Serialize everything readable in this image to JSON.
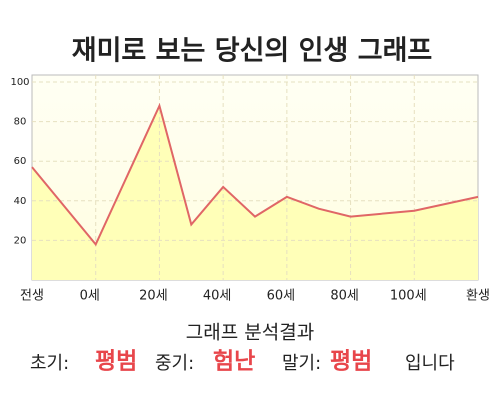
{
  "chart_data": {
    "type": "area",
    "title": "재미로 보는 당신의 인생 그래프",
    "x": [
      0,
      2,
      4,
      5,
      6,
      7,
      8,
      9,
      10,
      12,
      14
    ],
    "values": [
      57,
      18,
      88,
      28,
      47,
      32,
      42,
      36,
      32,
      35,
      42
    ],
    "color": "#e06666",
    "fill": "#ffffb8",
    "xlim": [
      0,
      14
    ],
    "xticks": [
      {
        "value": 0,
        "label": "전생"
      },
      {
        "value": 2,
        "label": "0세"
      },
      {
        "value": 4,
        "label": "20세"
      },
      {
        "value": 6,
        "label": "40세"
      },
      {
        "value": 8,
        "label": "60세"
      },
      {
        "value": 10,
        "label": "80세"
      },
      {
        "value": 12,
        "label": "100세"
      },
      {
        "value": 14,
        "label": "환생"
      }
    ],
    "ylim": [
      0,
      100
    ],
    "yticks": [
      20,
      40,
      60,
      80,
      100
    ],
    "grid": true
  },
  "analysis": {
    "title": "그래프 분석결과",
    "items": [
      {
        "label": "초기:",
        "value": "평범"
      },
      {
        "label": "중기:",
        "value": "험난"
      },
      {
        "label": "말기:",
        "value": "평범"
      }
    ],
    "suffix": "입니다"
  }
}
